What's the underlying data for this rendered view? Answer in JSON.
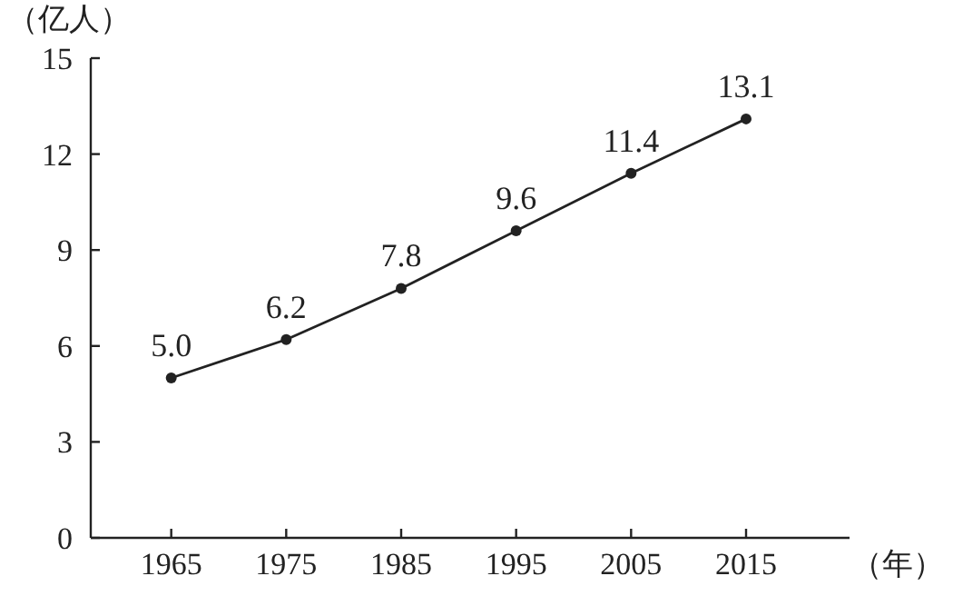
{
  "chart_data": {
    "type": "line",
    "ylabel": "（亿人）",
    "xlabel": "（年）",
    "x": [
      1965,
      1975,
      1985,
      1995,
      2005,
      2015
    ],
    "values": [
      5.0,
      6.2,
      7.8,
      9.6,
      11.4,
      13.1
    ],
    "value_labels": [
      "5.0",
      "6.2",
      "7.8",
      "9.6",
      "11.4",
      "13.1"
    ],
    "color": "#222222",
    "marker": "circle",
    "line_style": "solid",
    "grid": false,
    "xlim": [
      1958,
      2024
    ],
    "xticks": [
      1965,
      1975,
      1985,
      1995,
      2005,
      2015
    ],
    "ylim": [
      0,
      15
    ],
    "yticks": [
      0,
      3,
      6,
      9,
      12,
      15
    ]
  }
}
